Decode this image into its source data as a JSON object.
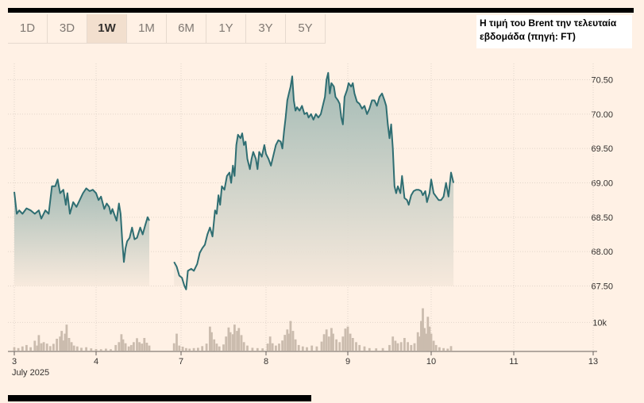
{
  "range_tabs": [
    "1D",
    "3D",
    "1W",
    "1M",
    "6M",
    "1Y",
    "3Y",
    "5Y"
  ],
  "active_tab": "1W",
  "caption": {
    "line1": "Η τιμή του Brent την τελευταία",
    "line2": "εβδομάδα (πηγή: FT)"
  },
  "colors": {
    "line": "#2f6e72",
    "area_top": "#9db7b2",
    "area_bottom": "#f7e9dc",
    "volume": "#cbbcae",
    "background": "#fff1e5"
  },
  "chart_data": {
    "type": "line",
    "x_ticks": [
      {
        "day": 3,
        "label": "3",
        "sublabel": "July 2025"
      },
      {
        "day": 4,
        "label": "4"
      },
      {
        "day": 7,
        "label": "7"
      },
      {
        "day": 8,
        "label": "8"
      },
      {
        "day": 9,
        "label": "9"
      },
      {
        "day": 10,
        "label": "10"
      },
      {
        "day": 11,
        "label": "11"
      },
      {
        "day": 13,
        "label": "13"
      }
    ],
    "y_ticks": [
      "70.50",
      "70.00",
      "69.50",
      "69.00",
      "68.50",
      "68.00",
      "67.50"
    ],
    "ylim": [
      67.4,
      70.7
    ],
    "volume_tick": "10k",
    "volume_max": 16000,
    "series": [
      {
        "values": [
          [
            3.0,
            68.87
          ],
          [
            3.03,
            68.55
          ],
          [
            3.06,
            68.6
          ],
          [
            3.1,
            68.55
          ],
          [
            3.15,
            68.63
          ],
          [
            3.2,
            68.6
          ],
          [
            3.25,
            68.55
          ],
          [
            3.3,
            68.6
          ],
          [
            3.33,
            68.48
          ],
          [
            3.38,
            68.6
          ],
          [
            3.42,
            68.55
          ],
          [
            3.46,
            68.95
          ],
          [
            3.5,
            68.95
          ],
          [
            3.53,
            69.05
          ],
          [
            3.56,
            68.85
          ],
          [
            3.6,
            68.9
          ],
          [
            3.63,
            68.68
          ],
          [
            3.65,
            68.85
          ],
          [
            3.68,
            68.55
          ],
          [
            3.72,
            68.72
          ],
          [
            3.76,
            68.65
          ],
          [
            3.8,
            68.75
          ],
          [
            3.84,
            68.85
          ],
          [
            3.88,
            68.92
          ],
          [
            3.92,
            68.88
          ],
          [
            3.96,
            68.9
          ],
          [
            4.0,
            68.85
          ],
          [
            4.03,
            68.75
          ],
          [
            4.06,
            68.8
          ],
          [
            4.1,
            68.62
          ],
          [
            4.13,
            68.7
          ],
          [
            4.16,
            68.65
          ],
          [
            4.18,
            68.55
          ],
          [
            4.2,
            68.62
          ],
          [
            4.22,
            68.55
          ],
          [
            4.25,
            68.45
          ],
          [
            4.28,
            68.7
          ],
          [
            4.3,
            68.55
          ],
          [
            4.32,
            68.15
          ],
          [
            4.34,
            67.85
          ],
          [
            4.36,
            68.05
          ],
          [
            4.38,
            68.15
          ],
          [
            4.41,
            68.2
          ],
          [
            4.44,
            68.35
          ],
          [
            4.47,
            68.18
          ],
          [
            4.5,
            68.2
          ],
          [
            4.54,
            68.35
          ],
          [
            4.57,
            68.25
          ],
          [
            4.6,
            68.38
          ],
          [
            4.63,
            68.5
          ],
          [
            4.65,
            68.45
          ],
          [
            6.92,
            67.85
          ],
          [
            6.95,
            67.78
          ],
          [
            6.98,
            67.65
          ],
          [
            7.01,
            67.62
          ],
          [
            7.04,
            67.5
          ],
          [
            7.06,
            67.45
          ],
          [
            7.08,
            67.72
          ],
          [
            7.12,
            67.75
          ],
          [
            7.15,
            67.72
          ],
          [
            7.19,
            67.82
          ],
          [
            7.22,
            67.98
          ],
          [
            7.25,
            68.05
          ],
          [
            7.28,
            68.1
          ],
          [
            7.31,
            68.25
          ],
          [
            7.34,
            68.35
          ],
          [
            7.37,
            68.22
          ],
          [
            7.4,
            68.6
          ],
          [
            7.42,
            68.55
          ],
          [
            7.44,
            68.82
          ],
          [
            7.46,
            68.68
          ],
          [
            7.48,
            68.95
          ],
          [
            7.51,
            68.9
          ],
          [
            7.54,
            69.1
          ],
          [
            7.57,
            69.15
          ],
          [
            7.59,
            69.0
          ],
          [
            7.61,
            69.25
          ],
          [
            7.63,
            69.1
          ],
          [
            7.65,
            69.55
          ],
          [
            7.67,
            69.7
          ],
          [
            7.7,
            69.65
          ],
          [
            7.72,
            69.72
          ],
          [
            7.74,
            69.55
          ],
          [
            7.76,
            69.6
          ],
          [
            7.78,
            69.35
          ],
          [
            7.81,
            69.2
          ],
          [
            7.83,
            69.35
          ],
          [
            7.85,
            69.45
          ],
          [
            7.88,
            69.35
          ],
          [
            7.9,
            69.2
          ],
          [
            7.92,
            69.45
          ],
          [
            7.95,
            69.38
          ],
          [
            7.98,
            69.55
          ],
          [
            8.0,
            69.42
          ],
          [
            8.03,
            69.35
          ],
          [
            8.06,
            69.25
          ],
          [
            8.09,
            69.4
          ],
          [
            8.12,
            69.55
          ],
          [
            8.15,
            69.62
          ],
          [
            8.18,
            69.6
          ],
          [
            8.2,
            69.5
          ],
          [
            8.22,
            69.75
          ],
          [
            8.24,
            69.95
          ],
          [
            8.26,
            70.2
          ],
          [
            8.28,
            70.3
          ],
          [
            8.3,
            70.4
          ],
          [
            8.32,
            70.55
          ],
          [
            8.34,
            70.2
          ],
          [
            8.36,
            70.05
          ],
          [
            8.38,
            70.1
          ],
          [
            8.41,
            70.05
          ],
          [
            8.44,
            70.12
          ],
          [
            8.47,
            70.0
          ],
          [
            8.5,
            70.02
          ],
          [
            8.52,
            69.95
          ],
          [
            8.55,
            70.0
          ],
          [
            8.58,
            69.92
          ],
          [
            8.61,
            70.0
          ],
          [
            8.64,
            69.95
          ],
          [
            8.67,
            70.0
          ],
          [
            8.7,
            70.15
          ],
          [
            8.72,
            70.25
          ],
          [
            8.74,
            70.5
          ],
          [
            8.76,
            70.6
          ],
          [
            8.78,
            70.3
          ],
          [
            8.8,
            70.45
          ],
          [
            8.83,
            70.4
          ],
          [
            8.85,
            70.25
          ],
          [
            8.88,
            70.2
          ],
          [
            8.9,
            70.15
          ],
          [
            8.92,
            69.95
          ],
          [
            8.94,
            69.85
          ],
          [
            8.96,
            70.25
          ],
          [
            8.99,
            70.35
          ],
          [
            9.01,
            70.45
          ],
          [
            9.04,
            70.4
          ],
          [
            9.06,
            70.45
          ],
          [
            9.08,
            70.3
          ],
          [
            9.11,
            70.18
          ],
          [
            9.14,
            70.15
          ],
          [
            9.17,
            70.08
          ],
          [
            9.2,
            70.12
          ],
          [
            9.23,
            70.0
          ],
          [
            9.26,
            70.08
          ],
          [
            9.29,
            70.2
          ],
          [
            9.32,
            70.2
          ],
          [
            9.35,
            70.12
          ],
          [
            9.38,
            70.25
          ],
          [
            9.41,
            70.3
          ],
          [
            9.44,
            70.2
          ],
          [
            9.46,
            70.12
          ],
          [
            9.48,
            69.85
          ],
          [
            9.5,
            69.65
          ],
          [
            9.52,
            69.85
          ],
          [
            9.54,
            69.5
          ],
          [
            9.56,
            68.95
          ],
          [
            9.58,
            68.85
          ],
          [
            9.6,
            68.95
          ],
          [
            9.63,
            68.85
          ],
          [
            9.65,
            69.1
          ],
          [
            9.68,
            68.78
          ],
          [
            9.71,
            68.75
          ],
          [
            9.73,
            68.68
          ],
          [
            9.76,
            68.82
          ],
          [
            9.79,
            68.88
          ],
          [
            9.82,
            68.9
          ],
          [
            9.85,
            68.9
          ],
          [
            9.88,
            68.88
          ],
          [
            9.9,
            68.82
          ],
          [
            9.93,
            68.88
          ],
          [
            9.95,
            68.72
          ],
          [
            9.98,
            68.85
          ],
          [
            10.0,
            69.05
          ],
          [
            10.03,
            68.85
          ],
          [
            10.06,
            68.8
          ],
          [
            10.09,
            68.75
          ],
          [
            10.12,
            68.75
          ],
          [
            10.15,
            68.8
          ],
          [
            10.18,
            69.0
          ],
          [
            10.21,
            68.8
          ],
          [
            10.24,
            69.15
          ],
          [
            10.27,
            69.0
          ]
        ]
      }
    ],
    "volumes": [
      {
        "day": 3.0,
        "v": 1200
      },
      {
        "day": 3.05,
        "v": 900
      },
      {
        "day": 3.1,
        "v": 1500
      },
      {
        "day": 3.15,
        "v": 2000
      },
      {
        "day": 3.2,
        "v": 1200
      },
      {
        "day": 3.25,
        "v": 3500
      },
      {
        "day": 3.28,
        "v": 1800
      },
      {
        "day": 3.3,
        "v": 5500
      },
      {
        "day": 3.33,
        "v": 2600
      },
      {
        "day": 3.36,
        "v": 3000
      },
      {
        "day": 3.4,
        "v": 2500
      },
      {
        "day": 3.44,
        "v": 1600
      },
      {
        "day": 3.48,
        "v": 2400
      },
      {
        "day": 3.52,
        "v": 4200
      },
      {
        "day": 3.56,
        "v": 5000
      },
      {
        "day": 3.58,
        "v": 7000
      },
      {
        "day": 3.6,
        "v": 3600
      },
      {
        "day": 3.62,
        "v": 6000
      },
      {
        "day": 3.64,
        "v": 9200
      },
      {
        "day": 3.67,
        "v": 4500
      },
      {
        "day": 3.7,
        "v": 3000
      },
      {
        "day": 3.73,
        "v": 1800
      },
      {
        "day": 3.77,
        "v": 1500
      },
      {
        "day": 3.82,
        "v": 1000
      },
      {
        "day": 3.88,
        "v": 1200
      },
      {
        "day": 3.94,
        "v": 800
      },
      {
        "day": 4.0,
        "v": 600
      },
      {
        "day": 4.06,
        "v": 500
      },
      {
        "day": 4.12,
        "v": 700
      },
      {
        "day": 4.18,
        "v": 500
      },
      {
        "day": 4.24,
        "v": 2000
      },
      {
        "day": 4.28,
        "v": 3000
      },
      {
        "day": 4.31,
        "v": 5800
      },
      {
        "day": 4.33,
        "v": 4000
      },
      {
        "day": 4.36,
        "v": 2600
      },
      {
        "day": 4.4,
        "v": 1500
      },
      {
        "day": 4.43,
        "v": 2000
      },
      {
        "day": 4.46,
        "v": 3000
      },
      {
        "day": 4.5,
        "v": 4400
      },
      {
        "day": 4.53,
        "v": 3000
      },
      {
        "day": 4.56,
        "v": 2500
      },
      {
        "day": 4.59,
        "v": 4500
      },
      {
        "day": 4.62,
        "v": 2800
      },
      {
        "day": 4.65,
        "v": 1800
      },
      {
        "day": 6.92,
        "v": 2600
      },
      {
        "day": 6.95,
        "v": 6000
      },
      {
        "day": 6.98,
        "v": 1800
      },
      {
        "day": 7.02,
        "v": 1400
      },
      {
        "day": 7.06,
        "v": 900
      },
      {
        "day": 7.1,
        "v": 700
      },
      {
        "day": 7.15,
        "v": 900
      },
      {
        "day": 7.2,
        "v": 1000
      },
      {
        "day": 7.25,
        "v": 1600
      },
      {
        "day": 7.3,
        "v": 2500
      },
      {
        "day": 7.34,
        "v": 8500
      },
      {
        "day": 7.36,
        "v": 6500
      },
      {
        "day": 7.39,
        "v": 4000
      },
      {
        "day": 7.42,
        "v": 2500
      },
      {
        "day": 7.45,
        "v": 1500
      },
      {
        "day": 7.5,
        "v": 2200
      },
      {
        "day": 7.53,
        "v": 5000
      },
      {
        "day": 7.56,
        "v": 8200
      },
      {
        "day": 7.58,
        "v": 6500
      },
      {
        "day": 7.61,
        "v": 5800
      },
      {
        "day": 7.63,
        "v": 9200
      },
      {
        "day": 7.66,
        "v": 7000
      },
      {
        "day": 7.68,
        "v": 8000
      },
      {
        "day": 7.71,
        "v": 5500
      },
      {
        "day": 7.74,
        "v": 3000
      },
      {
        "day": 7.78,
        "v": 1800
      },
      {
        "day": 7.84,
        "v": 1000
      },
      {
        "day": 7.9,
        "v": 900
      },
      {
        "day": 7.96,
        "v": 800
      },
      {
        "day": 8.02,
        "v": 2500
      },
      {
        "day": 8.05,
        "v": 5000
      },
      {
        "day": 8.08,
        "v": 2600
      },
      {
        "day": 8.12,
        "v": 1800
      },
      {
        "day": 8.16,
        "v": 2500
      },
      {
        "day": 8.2,
        "v": 3600
      },
      {
        "day": 8.23,
        "v": 5600
      },
      {
        "day": 8.26,
        "v": 7500
      },
      {
        "day": 8.28,
        "v": 6000
      },
      {
        "day": 8.3,
        "v": 10500
      },
      {
        "day": 8.33,
        "v": 7000
      },
      {
        "day": 8.36,
        "v": 4000
      },
      {
        "day": 8.4,
        "v": 2000
      },
      {
        "day": 8.45,
        "v": 1500
      },
      {
        "day": 8.5,
        "v": 1200
      },
      {
        "day": 8.56,
        "v": 1800
      },
      {
        "day": 8.62,
        "v": 1500
      },
      {
        "day": 8.68,
        "v": 3200
      },
      {
        "day": 8.71,
        "v": 5800
      },
      {
        "day": 8.74,
        "v": 7500
      },
      {
        "day": 8.77,
        "v": 5000
      },
      {
        "day": 8.8,
        "v": 8000
      },
      {
        "day": 8.82,
        "v": 6000
      },
      {
        "day": 8.86,
        "v": 4000
      },
      {
        "day": 8.9,
        "v": 3000
      },
      {
        "day": 8.94,
        "v": 5000
      },
      {
        "day": 8.97,
        "v": 7800
      },
      {
        "day": 9.0,
        "v": 8500
      },
      {
        "day": 9.03,
        "v": 6000
      },
      {
        "day": 9.06,
        "v": 4500
      },
      {
        "day": 9.1,
        "v": 3000
      },
      {
        "day": 9.14,
        "v": 2000
      },
      {
        "day": 9.2,
        "v": 1500
      },
      {
        "day": 9.26,
        "v": 900
      },
      {
        "day": 9.34,
        "v": 800
      },
      {
        "day": 9.42,
        "v": 900
      },
      {
        "day": 9.5,
        "v": 2000
      },
      {
        "day": 9.54,
        "v": 5000
      },
      {
        "day": 9.57,
        "v": 3500
      },
      {
        "day": 9.6,
        "v": 2600
      },
      {
        "day": 9.64,
        "v": 3000
      },
      {
        "day": 9.68,
        "v": 4500
      },
      {
        "day": 9.72,
        "v": 3000
      },
      {
        "day": 9.76,
        "v": 2000
      },
      {
        "day": 9.8,
        "v": 2600
      },
      {
        "day": 9.84,
        "v": 6500
      },
      {
        "day": 9.86,
        "v": 5000
      },
      {
        "day": 9.88,
        "v": 10500
      },
      {
        "day": 9.9,
        "v": 15000
      },
      {
        "day": 9.92,
        "v": 8000
      },
      {
        "day": 9.94,
        "v": 6000
      },
      {
        "day": 9.96,
        "v": 12000
      },
      {
        "day": 9.98,
        "v": 8500
      },
      {
        "day": 10.0,
        "v": 6000
      },
      {
        "day": 10.03,
        "v": 3500
      },
      {
        "day": 10.06,
        "v": 2000
      },
      {
        "day": 10.1,
        "v": 1200
      },
      {
        "day": 10.15,
        "v": 900
      },
      {
        "day": 10.2,
        "v": 700
      },
      {
        "day": 10.24,
        "v": 1600
      }
    ]
  }
}
